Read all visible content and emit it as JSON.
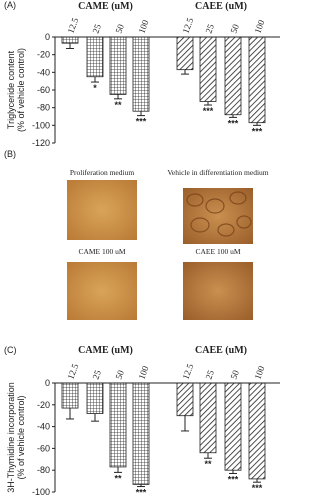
{
  "chart_data": [
    {
      "type": "bar",
      "panel": "(A)",
      "ylabel": [
        "Triglyceride content",
        "(% of vehicle control)"
      ],
      "ylim": [
        0,
        -120
      ],
      "yticks": [
        0,
        -20,
        -40,
        -60,
        -80,
        -100,
        -120
      ],
      "groups": [
        {
          "name": "CAME (uM)",
          "pattern": "grid",
          "categories": [
            "12.5",
            "25",
            "50",
            "100"
          ],
          "values": [
            -7,
            -45,
            -65,
            -84
          ],
          "errors": [
            6,
            6,
            5,
            5
          ],
          "significance": [
            null,
            "*",
            "**",
            "***"
          ]
        },
        {
          "name": "CAEE (uM)",
          "pattern": "hatch",
          "categories": [
            "12.5",
            "25",
            "50",
            "100"
          ],
          "values": [
            -37,
            -73,
            -88,
            -97
          ],
          "errors": [
            5,
            4,
            3,
            3
          ],
          "significance": [
            null,
            "***",
            "***",
            "***"
          ]
        }
      ]
    },
    {
      "type": "bar",
      "panel": "(C)",
      "ylabel": [
        "3H-Thymidine incorporation",
        "(% of vehicle control)"
      ],
      "ylim": [
        0,
        -100
      ],
      "yticks": [
        0,
        -20,
        -40,
        -60,
        -80,
        -100
      ],
      "groups": [
        {
          "name": "CAME (uM)",
          "pattern": "grid",
          "categories": [
            "12.5",
            "25",
            "50",
            "100"
          ],
          "values": [
            -23,
            -28,
            -77,
            -93
          ],
          "errors": [
            10,
            7,
            5,
            2
          ],
          "significance": [
            null,
            null,
            "**",
            "***"
          ]
        },
        {
          "name": "CAEE (uM)",
          "pattern": "hatch",
          "categories": [
            "12.5",
            "25",
            "50",
            "100"
          ],
          "values": [
            -30,
            -64,
            -80,
            -88
          ],
          "errors": [
            14,
            5,
            3,
            3
          ],
          "significance": [
            null,
            "**",
            "***",
            "***"
          ]
        }
      ]
    }
  ],
  "panel_b": {
    "label": "(B)",
    "images": [
      {
        "caption": "Proliferation medium"
      },
      {
        "caption": "Vehicle in differentiation medium"
      },
      {
        "caption": "CAME 100 uM"
      },
      {
        "caption": "CAEE 100 uM"
      }
    ]
  }
}
